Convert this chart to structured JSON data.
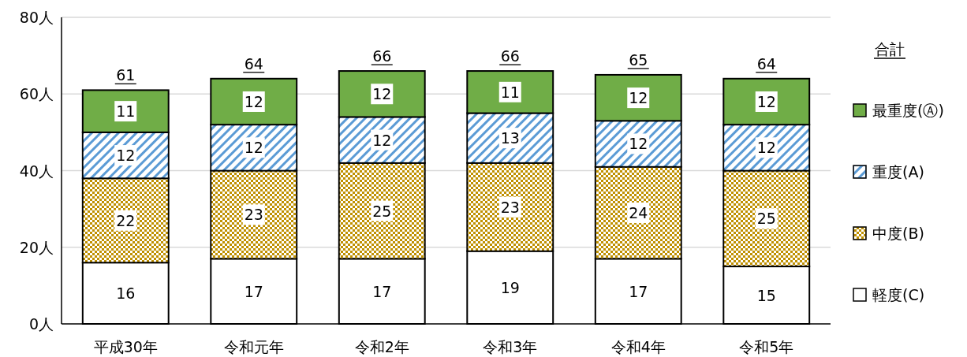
{
  "chart_data": {
    "type": "bar",
    "stacked": true,
    "categories": [
      "平成30年",
      "令和元年",
      "令和2年",
      "令和3年",
      "令和4年",
      "令和5年"
    ],
    "series": [
      {
        "name": "軽度(C)",
        "color": "#ffffff",
        "values": [
          16,
          17,
          17,
          19,
          17,
          15
        ]
      },
      {
        "name": "中度(B)",
        "color": "#bf9000",
        "values": [
          22,
          23,
          25,
          23,
          24,
          25
        ]
      },
      {
        "name": "重度(A)",
        "color": "#5b9bd5",
        "values": [
          12,
          12,
          12,
          13,
          12,
          12
        ]
      },
      {
        "name": "最重度(Ⓐ)",
        "color": "#70ad47",
        "values": [
          11,
          12,
          12,
          11,
          12,
          12
        ]
      }
    ],
    "totals": [
      "61",
      "64",
      "66",
      "66",
      "65",
      "64"
    ],
    "legend_title": "合計",
    "legend": "right",
    "grid": "y",
    "data_labels": true,
    "ylim": [
      0,
      80
    ],
    "yticks": [
      {
        "value": 0,
        "label": "0人"
      },
      {
        "value": 20,
        "label": "20人"
      },
      {
        "value": 40,
        "label": "40人"
      },
      {
        "value": 60,
        "label": "60人"
      },
      {
        "value": 80,
        "label": "80人"
      }
    ]
  }
}
